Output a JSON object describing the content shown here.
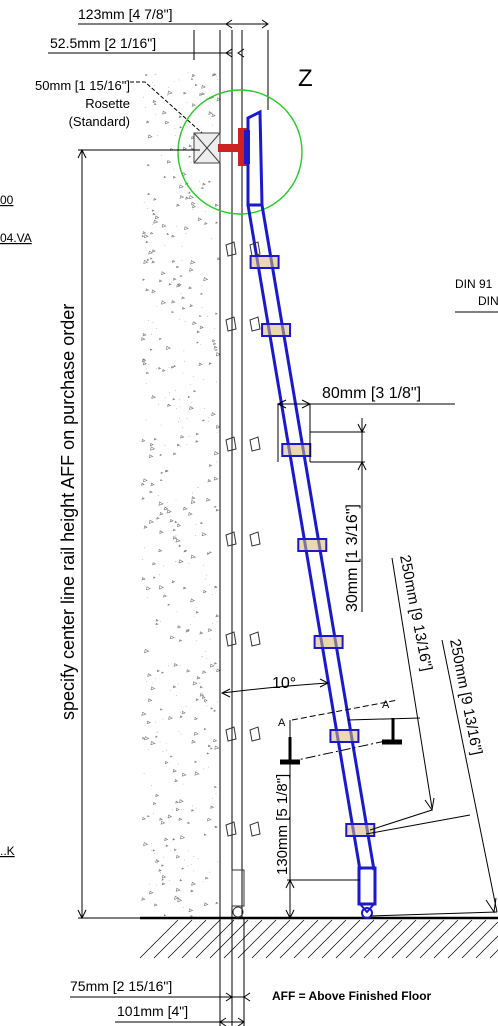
{
  "dimensions": {
    "top_outer": "123mm [4 7/8\"]",
    "top_inner": "52.5mm [2 1/16\"]",
    "rosette_size": "50mm [1 15/16\"]",
    "rosette_label": "Rosette",
    "rosette_type": "(Standard)",
    "detail_label": "Z",
    "left_cut_1": "00",
    "left_cut_2": "04.VA",
    "right_cut_1": "DIN 91",
    "right_cut_2": "DIN",
    "left_cut_3": "..K",
    "height_note": "specify center line rail height AFF on purchase order",
    "rung_width": "80mm [3 1/8\"]",
    "rung_depth": "30mm [1 3/16\"]",
    "rung_spacing_1": "250mm [9 13/16\"]",
    "rung_spacing_2": "250mm [9 13/16\"]",
    "angle": "10°",
    "bottom_clearance": "130mm [5 1/8\"]",
    "section_a": "A",
    "bottom_inner": "75mm [2 15/16\"]",
    "bottom_outer": "101mm [4\"]",
    "aff_note": "AFF = Above Finished Floor"
  },
  "colors": {
    "ladder": "#1a1acc",
    "rung_highlight": "#d9b878",
    "detail_circle": "#22cc22",
    "rosette": "#cc2222",
    "lines": "#000000"
  }
}
